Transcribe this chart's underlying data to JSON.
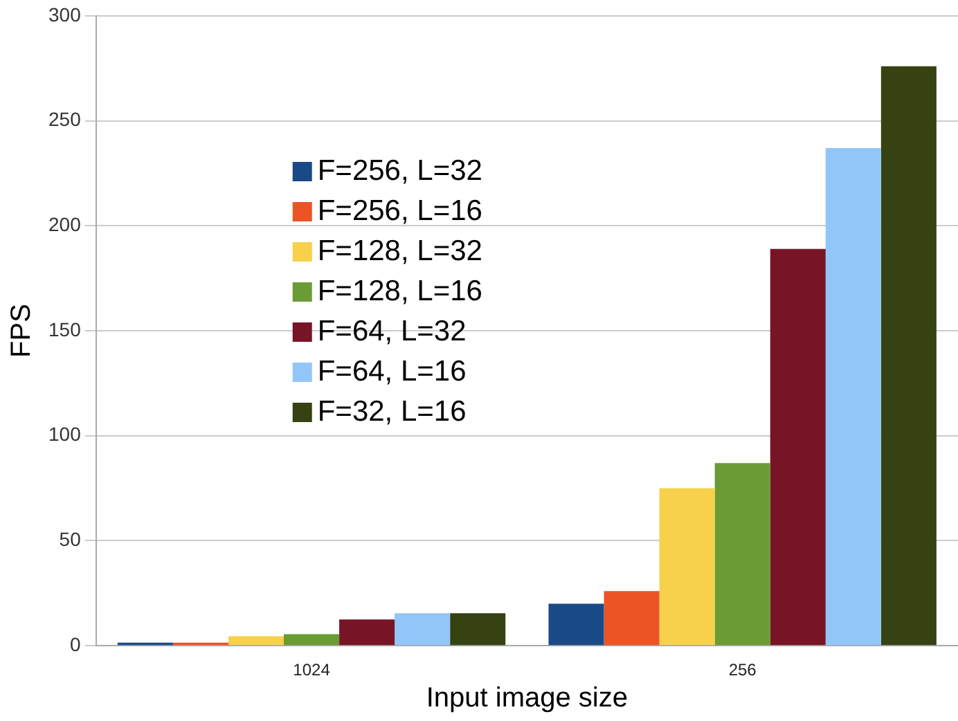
{
  "chart_data": {
    "type": "bar",
    "xlabel": "Input image size",
    "ylabel": "FPS",
    "categories": [
      "1024",
      "256"
    ],
    "series": [
      {
        "name": "F=256, L=32",
        "color": "#1a4a86",
        "values": [
          1.5,
          20
        ]
      },
      {
        "name": "F=256, L=16",
        "color": "#ec5426",
        "values": [
          1.5,
          26
        ]
      },
      {
        "name": "F=128, L=32",
        "color": "#f7d04c",
        "values": [
          4.5,
          75
        ]
      },
      {
        "name": "F=128, L=16",
        "color": "#6a9b34",
        "values": [
          5.5,
          87
        ]
      },
      {
        "name": "F=64, L=32",
        "color": "#771526",
        "values": [
          12.5,
          189
        ]
      },
      {
        "name": "F=64, L=16",
        "color": "#93c6f8",
        "values": [
          15.5,
          237
        ]
      },
      {
        "name": "F=32, L=16",
        "color": "#364212",
        "values": [
          15.5,
          276
        ]
      }
    ],
    "ylim": [
      0,
      300
    ],
    "yticks": [
      0,
      50,
      100,
      150,
      200,
      250,
      300
    ],
    "grid": "y",
    "legend": "left"
  }
}
